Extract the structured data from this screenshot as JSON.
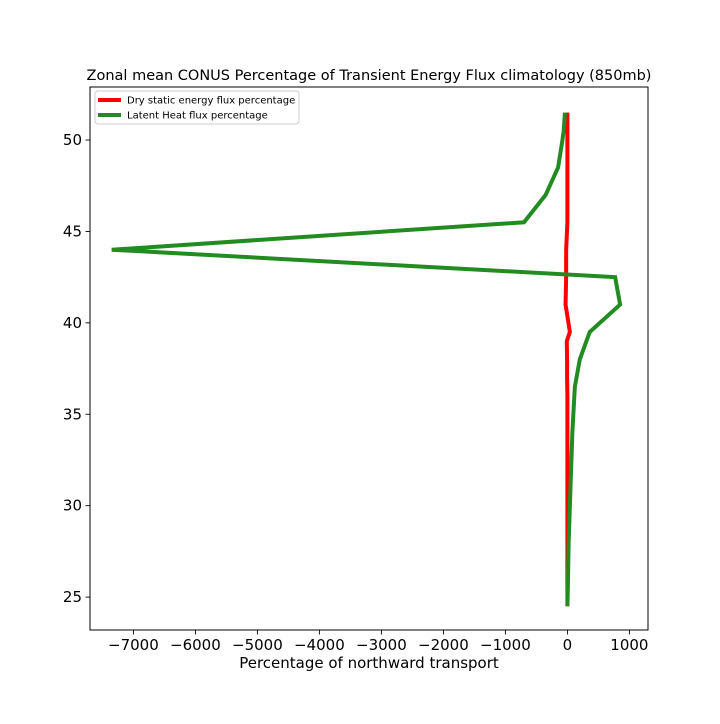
{
  "chart_data": {
    "type": "line",
    "title": "Zonal mean CONUS Percentage of Transient Energy Flux climatology (850mb)",
    "xlabel": "Percentage of northward transport",
    "ylabel": "",
    "xlim": [
      -7700,
      1300
    ],
    "ylim": [
      23.2,
      52.9
    ],
    "xticks": [
      -7000,
      -6000,
      -5000,
      -4000,
      -3000,
      -2000,
      -1000,
      0,
      1000
    ],
    "xtick_labels": [
      "−7000",
      "−6000",
      "−5000",
      "−4000",
      "−3000",
      "−2000",
      "−1000",
      "0",
      "1000"
    ],
    "yticks": [
      25,
      30,
      35,
      40,
      45,
      50
    ],
    "ytick_labels": [
      "25",
      "30",
      "35",
      "40",
      "45",
      "50"
    ],
    "grid": false,
    "legend_position": "top-left",
    "series": [
      {
        "name": "Dry static energy flux percentage",
        "color": "#ff0000",
        "x": [
          0,
          0,
          0,
          0,
          0,
          0,
          0,
          -5,
          -5,
          -10,
          40,
          -30,
          -20,
          -20,
          0,
          0,
          0,
          0,
          0,
          0,
          0
        ],
        "y": [
          24.5,
          26,
          28,
          30,
          32,
          34,
          36,
          37,
          38,
          39,
          39.5,
          41,
          42.5,
          44,
          45.5,
          47,
          48.5,
          50,
          50.5,
          51,
          51.5
        ]
      },
      {
        "name": "Latent Heat flux percentage",
        "color": "#228b22",
        "x": [
          0,
          10,
          20,
          40,
          60,
          80,
          120,
          200,
          360,
          850,
          770,
          -7350,
          -700,
          -350,
          -150,
          -80,
          -60,
          -40
        ],
        "y": [
          24.5,
          26,
          28,
          30,
          32,
          34,
          36.5,
          38,
          39.5,
          41,
          42.5,
          44,
          45.5,
          47,
          48.5,
          50,
          50.5,
          51.5
        ]
      }
    ]
  }
}
